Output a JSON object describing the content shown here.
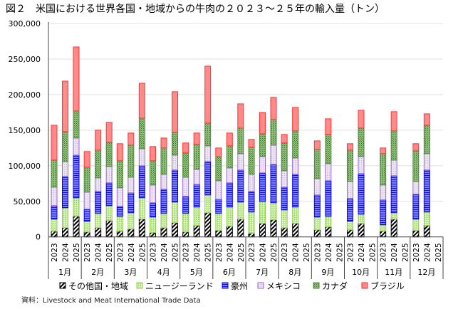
{
  "chart_data": {
    "type": "bar",
    "stacked": true,
    "title": "図２　米国における世界各国・地域からの牛肉の２０２３～２５年の輸入量（トン）",
    "source": "資料：Livestock and Meat International Trade Data",
    "ylim": [
      0,
      300000
    ],
    "yticks": [
      0,
      50000,
      100000,
      150000,
      200000,
      250000,
      300000
    ],
    "ytick_labels": [
      "0",
      "50,000",
      "100,000",
      "150,000",
      "200,000",
      "250,000",
      "300,000"
    ],
    "grid": true,
    "legend_position": "bottom",
    "months": [
      "1月",
      "2月",
      "3月",
      "4月",
      "5月",
      "6月",
      "7月",
      "8月",
      "9月",
      "10月",
      "11月",
      "12月"
    ],
    "years": [
      "2023",
      "2024",
      "2025"
    ],
    "series": [
      {
        "name": "その他国・地域",
        "color": "#000000",
        "pattern": "diagonal",
        "values": [
          [
            8000,
            13000,
            29000
          ],
          [
            7000,
            13000,
            23000
          ],
          [
            8000,
            11000,
            25000
          ],
          [
            6000,
            13000,
            20000
          ],
          [
            7000,
            16000,
            34000
          ],
          [
            9000,
            15000,
            25000
          ],
          [
            5000,
            19000,
            24000
          ],
          [
            13000,
            19000,
            null
          ],
          [
            10000,
            14000,
            null
          ],
          [
            10000,
            19000,
            null
          ],
          [
            8000,
            25000,
            null
          ],
          [
            9000,
            16000,
            null
          ]
        ]
      },
      {
        "name": "ニュージーランド",
        "color": "#92d050",
        "pattern": "dots",
        "values": [
          [
            17000,
            28000,
            26000
          ],
          [
            15000,
            20000,
            21000
          ],
          [
            21000,
            23000,
            30000
          ],
          [
            22000,
            20000,
            29000
          ],
          [
            26000,
            26000,
            25000
          ],
          [
            24000,
            27000,
            24000
          ],
          [
            30000,
            31000,
            24000
          ],
          [
            25000,
            23000,
            null
          ],
          [
            18000,
            15000,
            null
          ],
          [
            12000,
            13000,
            null
          ],
          [
            9000,
            9000,
            null
          ],
          [
            16000,
            19000,
            null
          ]
        ]
      },
      {
        "name": "豪州",
        "color": "#0000ff",
        "pattern": "hlines",
        "values": [
          [
            19000,
            44000,
            60000
          ],
          [
            17000,
            31000,
            32000
          ],
          [
            14000,
            28000,
            45000
          ],
          [
            20000,
            34000,
            45000
          ],
          [
            24000,
            32000,
            47000
          ],
          [
            20000,
            34000,
            45000
          ],
          [
            29000,
            40000,
            54000
          ],
          [
            32000,
            46000,
            null
          ],
          [
            31000,
            50000,
            null
          ],
          [
            32000,
            57000,
            null
          ],
          [
            35000,
            52000,
            null
          ],
          [
            35000,
            59000,
            null
          ]
        ]
      },
      {
        "name": "メキシコ",
        "color": "#9966cc",
        "pattern": "light",
        "values": [
          [
            26000,
            21000,
            24000
          ],
          [
            24000,
            19000,
            23000
          ],
          [
            26000,
            22000,
            24000
          ],
          [
            25000,
            21000,
            21000
          ],
          [
            27000,
            21000,
            22000
          ],
          [
            26000,
            21000,
            23000
          ],
          [
            24000,
            23000,
            27000
          ],
          [
            23000,
            23000,
            null
          ],
          [
            23000,
            24000,
            null
          ],
          [
            24000,
            24000,
            null
          ],
          [
            21000,
            22000,
            null
          ],
          [
            18000,
            23000,
            null
          ]
        ]
      },
      {
        "name": "カナダ",
        "color": "#4e8a3a",
        "pattern": "cross",
        "values": [
          [
            38000,
            42000,
            38000
          ],
          [
            35000,
            39000,
            34000
          ],
          [
            38000,
            45000,
            43000
          ],
          [
            34000,
            37000,
            32000
          ],
          [
            34000,
            35000,
            32000
          ],
          [
            34000,
            31000,
            36000
          ],
          [
            38000,
            32000,
            36000
          ],
          [
            39000,
            38000,
            null
          ],
          [
            41000,
            41000,
            null
          ],
          [
            44000,
            40000,
            null
          ],
          [
            44000,
            41000,
            null
          ],
          [
            43000,
            40000,
            null
          ]
        ]
      },
      {
        "name": "ブラジル",
        "color": "#ff3333",
        "pattern": "solid",
        "values": [
          [
            49000,
            71000,
            90000
          ],
          [
            22000,
            28000,
            28000
          ],
          [
            24000,
            17000,
            49000
          ],
          [
            20000,
            14000,
            57000
          ],
          [
            14000,
            16000,
            80000
          ],
          [
            12000,
            18000,
            34000
          ],
          [
            11000,
            30000,
            31000
          ],
          [
            12000,
            33000,
            null
          ],
          [
            12000,
            22000,
            null
          ],
          [
            9000,
            25000,
            null
          ],
          [
            8000,
            27000,
            null
          ],
          [
            10000,
            16000,
            null
          ]
        ]
      }
    ]
  }
}
